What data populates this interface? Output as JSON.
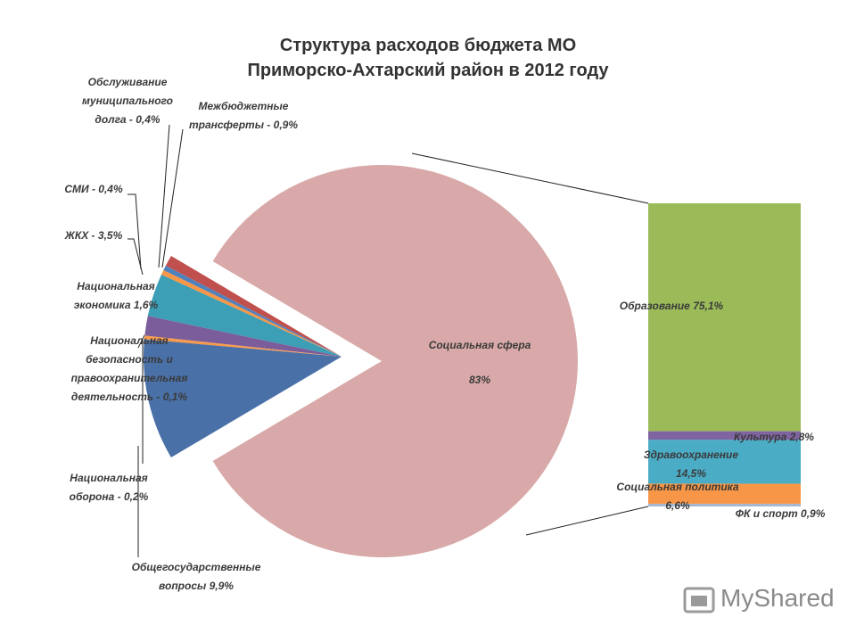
{
  "chart_data": {
    "type": "bar_of_pie",
    "title": "Структура расходов бюджета МО",
    "subtitle": "Приморско-Ахтарский район в 2012 году",
    "categories": [
      "Социальная сфера",
      "Общегосударственные вопросы",
      "Национальная оборона -",
      "Национальная безопасность и правоохранительная деятельность -",
      "Национальная экономика",
      "ЖКХ -",
      "СМИ -",
      "Обслуживание муниципального долга -",
      "Межбюджетные трансферты -"
    ],
    "values": [
      83,
      9.9,
      0.2,
      0.1,
      1.6,
      3.5,
      0.4,
      0.4,
      0.9
    ],
    "value_labels": [
      "83%",
      "9,9%",
      "0,2%",
      "0,1%",
      "1,6%",
      "3,5%",
      "0,4%",
      "0,4%",
      "0,9%"
    ],
    "colors": [
      "#d8a9a8",
      "#4a70a8",
      "#f79646",
      "#f79646",
      "#7a5d9a",
      "#3c9fb6",
      "#f79646",
      "#4f81bd",
      "#c0504d"
    ],
    "bar": {
      "categories": [
        "Образование",
        "Культура",
        "Здравоохранение",
        "Социальная политика",
        "ФК и спорт"
      ],
      "values": [
        75.1,
        2.8,
        14.5,
        6.6,
        0.9
      ],
      "value_labels": [
        "75,1%",
        "2,8%",
        "14,5%",
        "6,6%",
        "0,9%"
      ],
      "colors": [
        "#9bbb59",
        "#8064a2",
        "#4bacc6",
        "#f79646",
        "#a5b8d0"
      ]
    },
    "watermark": "MyShared"
  }
}
